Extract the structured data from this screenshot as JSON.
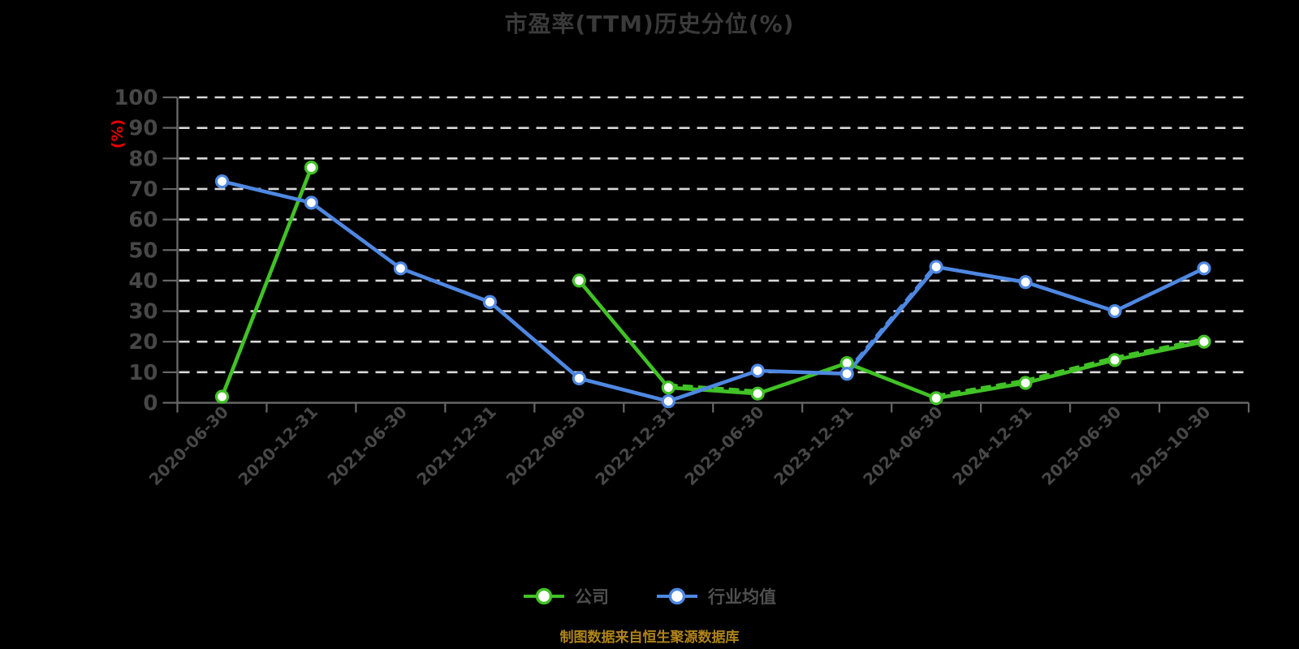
{
  "title": "市盈率(TTM)历史分位(%)",
  "footer": "制图数据来自恒生聚源数据库",
  "legend": {
    "company_label": "公司",
    "industry_label": "行业均值"
  },
  "colors": {
    "background": "#000000",
    "title": "#3a3a3a",
    "grid": "#d8d8d8",
    "axis": "#666666",
    "tick_label": "#474747",
    "unit_label": "#e60000",
    "legend_text": "#4f4f4f",
    "footer_text": "#b08418",
    "company_line": "#41c226",
    "industry_line": "#4e88e2",
    "marker_fill": "#ffffff"
  },
  "chart_data": {
    "type": "line",
    "title": "市盈率(TTM)历史分位(%)",
    "xlabel": "",
    "ylabel": "(%)",
    "ylim": [
      0,
      100
    ],
    "y_tick_step": 10,
    "y_ticks": [
      0,
      10,
      20,
      30,
      40,
      50,
      60,
      70,
      80,
      90,
      100
    ],
    "grid": "horizontal-dashed",
    "legend_position": "bottom",
    "categories": [
      "2020-06-30",
      "2020-12-31",
      "2021-06-30",
      "2021-12-31",
      "2022-06-30",
      "2022-12-31",
      "2023-06-30",
      "2023-12-31",
      "2024-06-30",
      "2024-12-31",
      "2025-06-30",
      "2025-10-30"
    ],
    "series": [
      {
        "name": "公司",
        "slug": "company",
        "color": "#41c226",
        "values": [
          2,
          77,
          null,
          null,
          40,
          5,
          3,
          13,
          1.5,
          6.5,
          14,
          20
        ],
        "dashed_overlay_segments": [
          [
            5,
            6
          ],
          [
            8,
            9
          ],
          [
            9,
            10
          ],
          [
            10,
            11
          ]
        ]
      },
      {
        "name": "行业均值",
        "slug": "industry-average",
        "color": "#4e88e2",
        "values": [
          72.5,
          65.5,
          44,
          33,
          8,
          0.5,
          10.5,
          9.5,
          44.5,
          39.5,
          30,
          44
        ],
        "dashed_overlay_segments": [
          [
            7,
            8
          ]
        ]
      }
    ]
  }
}
